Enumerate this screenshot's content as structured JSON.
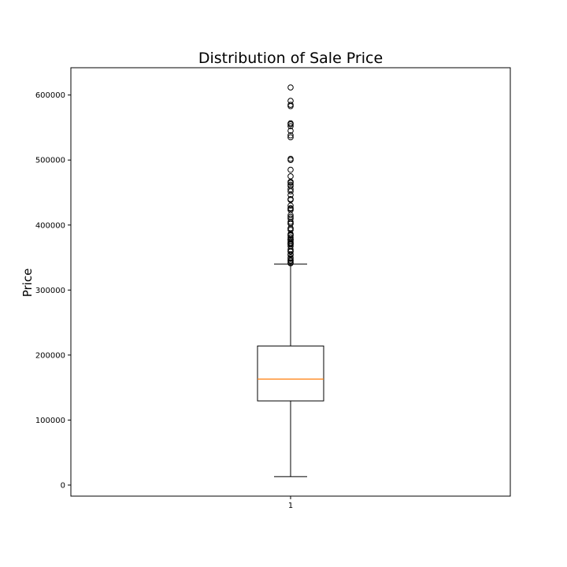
{
  "chart_data": {
    "type": "box",
    "title": "Distribution of Sale Price",
    "xlabel": "",
    "ylabel": "Price",
    "categories": [
      "1"
    ],
    "ylim": [
      -17000,
      642000
    ],
    "yticks": [
      0,
      100000,
      200000,
      300000,
      400000,
      500000,
      600000
    ],
    "ytick_labels": [
      "0",
      "100000",
      "200000",
      "300000",
      "400000",
      "500000",
      "600000"
    ],
    "grid": false,
    "box": {
      "whisker_low": 13000,
      "q1": 129500,
      "median": 163000,
      "q3": 214000,
      "whisker_high": 340000
    },
    "outliers": [
      611657,
      591000,
      585000,
      582933,
      556581,
      555000,
      552000,
      545000,
      538000,
      535000,
      501837,
      500000,
      485000,
      475000,
      466500,
      465000,
      462000,
      460000,
      455000,
      451950,
      446261,
      440000,
      438780,
      430000,
      426000,
      424870,
      423000,
      415298,
      412500,
      410000,
      405000,
      402861,
      402000,
      395192,
      394617,
      392500,
      386250,
      385000,
      383970,
      381000,
      378500,
      377500,
      377426,
      375000,
      372500,
      372402,
      370878,
      369900,
      367294,
      362500,
      360000,
      359100,
      355000,
      354000,
      350000,
      348000,
      345474,
      345000,
      342643,
      341000
    ],
    "colors": {
      "box": "#000000",
      "median": "#ff7f0e",
      "outlier_edge": "#000000"
    }
  }
}
